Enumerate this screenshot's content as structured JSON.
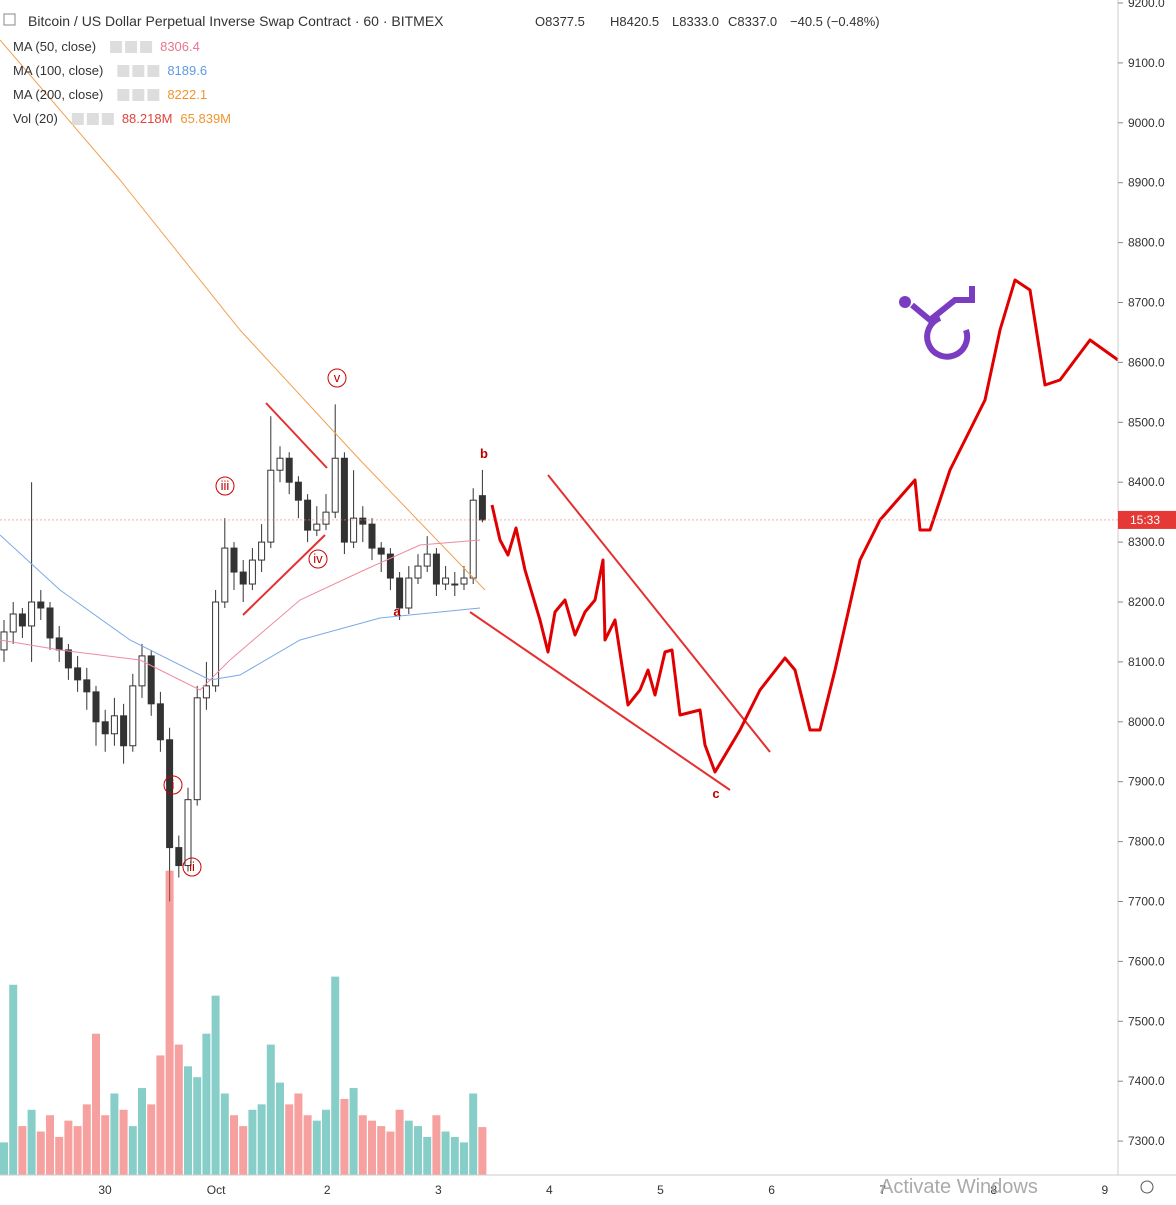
{
  "header": {
    "symbol": "Bitcoin / US Dollar Perpetual Inverse Swap Contract · 60 · BITMEX",
    "open": "O8377.5",
    "high": "H8420.5",
    "low": "L8333.0",
    "close": "C8337.0",
    "change": "−40.5 (−0.48%)"
  },
  "indicators": [
    {
      "name": "MA (50, close)",
      "value": "8306.4",
      "color": "#e8758f"
    },
    {
      "name": "MA (100, close)",
      "value": "8189.6",
      "color": "#5b9be6"
    },
    {
      "name": "MA (200, close)",
      "value": "8222.1",
      "color": "#f0952e"
    },
    {
      "name": "Vol (20)",
      "value": "88.218M",
      "value2": "65.839M",
      "color": "#e0443a"
    }
  ],
  "price_axis": {
    "ticks": [
      {
        "value": 9200,
        "label": "9200.0"
      },
      {
        "value": 9100,
        "label": "9100.0"
      },
      {
        "value": 9000,
        "label": "9000.0"
      },
      {
        "value": 8900,
        "label": "8900.0"
      },
      {
        "value": 8800,
        "label": "8800.0"
      },
      {
        "value": 8700,
        "label": "8700.0"
      },
      {
        "value": 8600,
        "label": "8600.0"
      },
      {
        "value": 8500,
        "label": "8500.0"
      },
      {
        "value": 8400,
        "label": "8400.0"
      },
      {
        "value": 8300,
        "label": "8300.0"
      },
      {
        "value": 8200,
        "label": "8200.0"
      },
      {
        "value": 8100,
        "label": "8100.0"
      },
      {
        "value": 8000,
        "label": "8000.0"
      },
      {
        "value": 7900,
        "label": "7900.0"
      },
      {
        "value": 7800,
        "label": "7800.0"
      },
      {
        "value": 7700,
        "label": "7700.0"
      },
      {
        "value": 7600,
        "label": "7600.0"
      },
      {
        "value": 7500,
        "label": "7500.0"
      },
      {
        "value": 7400,
        "label": "7400.0"
      },
      {
        "value": 7300,
        "label": "7300.0"
      }
    ],
    "last_price": 8337,
    "last_label": "15:33"
  },
  "time_axis": [
    "30",
    "Oct",
    "2",
    "3",
    "4",
    "5",
    "6",
    "7",
    "8",
    "9"
  ],
  "candles": [
    [
      8120,
      8170,
      8100,
      8150
    ],
    [
      8150,
      8200,
      8130,
      8180
    ],
    [
      8180,
      8190,
      8140,
      8160
    ],
    [
      8160,
      8400,
      8100,
      8200
    ],
    [
      8200,
      8220,
      8170,
      8190
    ],
    [
      8190,
      8200,
      8120,
      8140
    ],
    [
      8140,
      8160,
      8100,
      8120
    ],
    [
      8120,
      8130,
      8070,
      8090
    ],
    [
      8090,
      8110,
      8050,
      8070
    ],
    [
      8070,
      8090,
      8020,
      8050
    ],
    [
      8050,
      8060,
      7960,
      8000
    ],
    [
      8000,
      8020,
      7950,
      7980
    ],
    [
      7980,
      8040,
      7960,
      8010
    ],
    [
      8010,
      8030,
      7930,
      7960
    ],
    [
      7960,
      8080,
      7950,
      8060
    ],
    [
      8060,
      8130,
      8040,
      8110
    ],
    [
      8110,
      8120,
      8010,
      8030
    ],
    [
      8030,
      8050,
      7950,
      7970
    ],
    [
      7970,
      7990,
      7700,
      7790
    ],
    [
      7790,
      7810,
      7740,
      7760
    ],
    [
      7760,
      7890,
      7750,
      7870
    ],
    [
      7870,
      8060,
      7860,
      8040
    ],
    [
      8040,
      8100,
      8020,
      8060
    ],
    [
      8060,
      8220,
      8050,
      8200
    ],
    [
      8200,
      8340,
      8190,
      8290
    ],
    [
      8290,
      8300,
      8220,
      8250
    ],
    [
      8250,
      8270,
      8200,
      8230
    ],
    [
      8230,
      8290,
      8220,
      8270
    ],
    [
      8270,
      8330,
      8250,
      8300
    ],
    [
      8300,
      8510,
      8290,
      8420
    ],
    [
      8420,
      8460,
      8400,
      8440
    ],
    [
      8440,
      8450,
      8380,
      8400
    ],
    [
      8400,
      8410,
      8340,
      8370
    ],
    [
      8370,
      8380,
      8300,
      8320
    ],
    [
      8320,
      8360,
      8310,
      8330
    ],
    [
      8330,
      8380,
      8320,
      8350
    ],
    [
      8350,
      8530,
      8340,
      8440
    ],
    [
      8440,
      8450,
      8280,
      8300
    ],
    [
      8300,
      8420,
      8290,
      8340
    ],
    [
      8340,
      8360,
      8300,
      8330
    ],
    [
      8330,
      8340,
      8270,
      8290
    ],
    [
      8290,
      8300,
      8250,
      8280
    ],
    [
      8280,
      8290,
      8220,
      8240
    ],
    [
      8240,
      8250,
      8170,
      8190
    ],
    [
      8190,
      8260,
      8180,
      8240
    ],
    [
      8240,
      8280,
      8230,
      8260
    ],
    [
      8260,
      8310,
      8250,
      8280
    ],
    [
      8280,
      8290,
      8210,
      8230
    ],
    [
      8230,
      8260,
      8220,
      8240
    ],
    [
      8230,
      8250,
      8210,
      8230
    ],
    [
      8230,
      8260,
      8220,
      8240
    ],
    [
      8240,
      8390,
      8230,
      8370
    ],
    [
      8377.5,
      8420.5,
      8333,
      8337
    ]
  ],
  "volume": [
    60,
    350,
    90,
    120,
    80,
    110,
    70,
    100,
    90,
    130,
    260,
    110,
    150,
    120,
    90,
    160,
    130,
    220,
    560,
    240,
    200,
    180,
    260,
    330,
    150,
    110,
    90,
    120,
    130,
    240,
    170,
    130,
    150,
    110,
    100,
    120,
    365,
    140,
    160,
    110,
    100,
    90,
    80,
    120,
    100,
    90,
    70,
    110,
    80,
    70,
    60,
    150,
    88.218
  ],
  "wave_labels": [
    "i",
    "ii",
    "iii",
    "iv",
    "v",
    "a",
    "b",
    "c"
  ],
  "watermark": "Activate Windows"
}
